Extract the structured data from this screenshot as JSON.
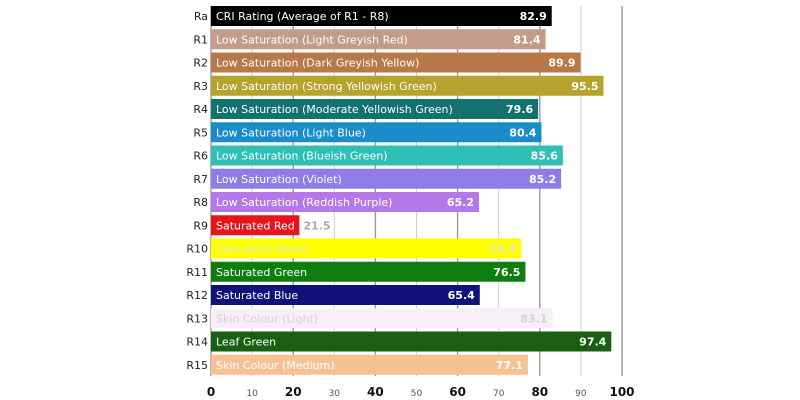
{
  "chart_data": {
    "type": "bar",
    "orientation": "horizontal",
    "title": "",
    "xlabel": "",
    "ylabel": "",
    "xlim": [
      0,
      100
    ],
    "x_ticks": [
      0,
      10,
      20,
      30,
      40,
      50,
      60,
      70,
      80,
      90,
      100
    ],
    "x_tick_labels": [
      "0",
      "10",
      "20",
      "30",
      "40",
      "50",
      "60",
      "70",
      "80",
      "90",
      "100"
    ],
    "major_ticks": [
      0,
      20,
      40,
      60,
      80,
      100
    ],
    "grid": true,
    "legend": "none",
    "categories": [
      "Ra",
      "R1",
      "R2",
      "R3",
      "R4",
      "R5",
      "R6",
      "R7",
      "R8",
      "R9",
      "R10",
      "R11",
      "R12",
      "R13",
      "R14",
      "R15"
    ],
    "bar_labels": [
      "CRI Rating (Average of R1 - R8)",
      "Low Saturation (Light Greyish Red)",
      "Low Saturation (Dark Greyish Yellow)",
      "Low Saturation (Strong Yellowish Green)",
      "Low Saturation (Moderate Yellowish Green)",
      "Low Saturation (Light Blue)",
      "Low Saturation (Blueish Green)",
      "Low Saturation (Violet)",
      "Low Saturation (Reddish Purple)",
      "Saturated Red",
      "Saturated Yellow",
      "Saturated Green",
      "Saturated Blue",
      "Skin Colour (Light)",
      "Leaf Green",
      "Skin Colour (Medium)"
    ],
    "values": [
      82.9,
      81.4,
      89.9,
      95.5,
      79.6,
      80.4,
      85.6,
      85.2,
      65.2,
      21.5,
      75.5,
      76.5,
      65.4,
      83.1,
      97.4,
      77.1
    ],
    "value_labels": [
      "82.9",
      "81.4",
      "89.9",
      "95.5",
      "79.6",
      "80.4",
      "85.6",
      "85.2",
      "65.2",
      "21.5",
      "75.5",
      "76.5",
      "65.4",
      "83.1",
      "97.4",
      "77.1"
    ],
    "colors": [
      "#000000",
      "#c49a89",
      "#b87847",
      "#b5a32d",
      "#137270",
      "#1a8cc9",
      "#2fbfb4",
      "#8c7ee6",
      "#b678e8",
      "#e8141b",
      "#ffff00",
      "#0f7d0f",
      "#11117a",
      "#f8eef6",
      "#1a5e12",
      "#f6c193"
    ],
    "text_colors": [
      "#ffffff",
      "#ffffff",
      "#ffffff",
      "#ffffff",
      "#ffffff",
      "#ffffff",
      "#ffffff",
      "#ffffff",
      "#ffffff",
      "#ffffff",
      "#e9e9c0",
      "#ffffff",
      "#ffffff",
      "#d8d0d8",
      "#ffffff",
      "#ffffff"
    ],
    "value_outside": [
      false,
      false,
      false,
      false,
      false,
      false,
      false,
      false,
      false,
      true,
      false,
      false,
      false,
      false,
      false,
      false
    ],
    "outside_value_color": "#aaaaaa"
  }
}
